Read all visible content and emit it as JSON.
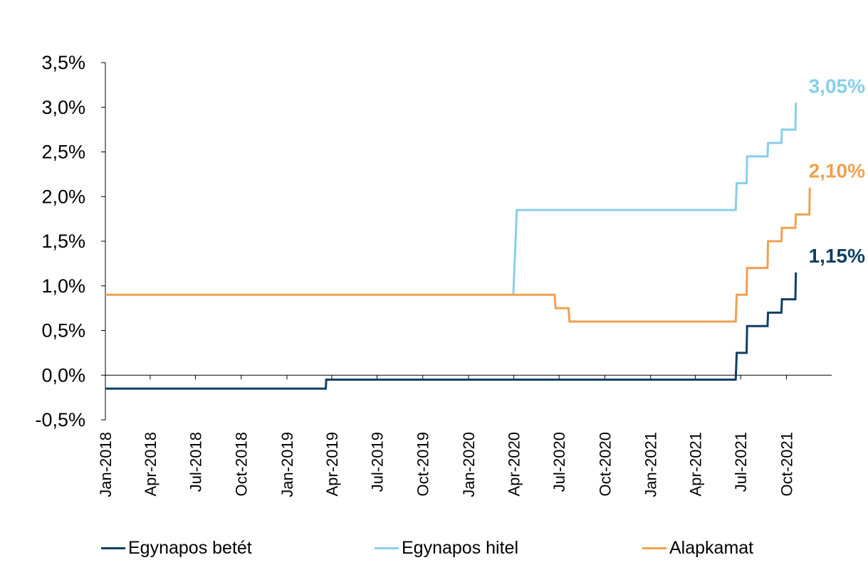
{
  "chart_data": {
    "type": "line",
    "title": "",
    "xlabel": "",
    "ylabel": "",
    "ylim": [
      -0.5,
      3.5
    ],
    "y_ticks": [
      "-0,5%",
      "0,0%",
      "0,5%",
      "1,0%",
      "1,5%",
      "2,0%",
      "2,5%",
      "3,0%",
      "3,5%"
    ],
    "x_ticks": [
      "Jan-2018",
      "Apr-2018",
      "Jul-2018",
      "Oct-2018",
      "Jan-2019",
      "Apr-2019",
      "Jul-2019",
      "Oct-2019",
      "Jan-2020",
      "Apr-2020",
      "Jul-2020",
      "Oct-2020",
      "Jan-2021",
      "Apr-2021",
      "Jul-2021",
      "Oct-2021"
    ],
    "x_range": [
      "2018-01-01",
      "2021-12-31"
    ],
    "grid": false,
    "legend_position": "bottom",
    "series": [
      {
        "name": "Egynapos betét",
        "color": "#0d3f63",
        "end_label": "1,15%",
        "points": [
          [
            "2018-01-01",
            -0.15
          ],
          [
            "2019-03-20",
            -0.15
          ],
          [
            "2019-03-21",
            -0.05
          ],
          [
            "2021-06-21",
            -0.05
          ],
          [
            "2021-06-23",
            0.25
          ],
          [
            "2021-07-13",
            0.25
          ],
          [
            "2021-07-14",
            0.55
          ],
          [
            "2021-08-24",
            0.55
          ],
          [
            "2021-08-25",
            0.7
          ],
          [
            "2021-09-21",
            0.7
          ],
          [
            "2021-09-22",
            0.85
          ],
          [
            "2021-10-19",
            0.85
          ],
          [
            "2021-10-20",
            1.15
          ]
        ]
      },
      {
        "name": "Egynapos hitel",
        "color": "#87ceeb",
        "end_label": "3,05%",
        "points": [
          [
            "2020-03-31",
            0.9
          ],
          [
            "2020-04-07",
            1.85
          ],
          [
            "2021-06-21",
            1.85
          ],
          [
            "2021-06-23",
            2.15
          ],
          [
            "2021-07-13",
            2.15
          ],
          [
            "2021-07-14",
            2.45
          ],
          [
            "2021-08-24",
            2.45
          ],
          [
            "2021-08-25",
            2.6
          ],
          [
            "2021-09-21",
            2.6
          ],
          [
            "2021-09-22",
            2.75
          ],
          [
            "2021-10-19",
            2.75
          ],
          [
            "2021-10-20",
            3.05
          ]
        ]
      },
      {
        "name": "Alapkamat",
        "color": "#f0a050",
        "end_label": "2,10%",
        "points": [
          [
            "2018-01-01",
            0.9
          ],
          [
            "2020-06-22",
            0.9
          ],
          [
            "2020-06-24",
            0.75
          ],
          [
            "2020-07-20",
            0.75
          ],
          [
            "2020-07-22",
            0.6
          ],
          [
            "2021-06-21",
            0.6
          ],
          [
            "2021-06-23",
            0.9
          ],
          [
            "2021-07-13",
            0.9
          ],
          [
            "2021-07-14",
            1.2
          ],
          [
            "2021-08-24",
            1.2
          ],
          [
            "2021-08-25",
            1.5
          ],
          [
            "2021-09-21",
            1.5
          ],
          [
            "2021-09-22",
            1.65
          ],
          [
            "2021-10-19",
            1.65
          ],
          [
            "2021-10-20",
            1.8
          ],
          [
            "2021-11-16",
            1.8
          ],
          [
            "2021-11-17",
            2.1
          ]
        ]
      }
    ]
  }
}
